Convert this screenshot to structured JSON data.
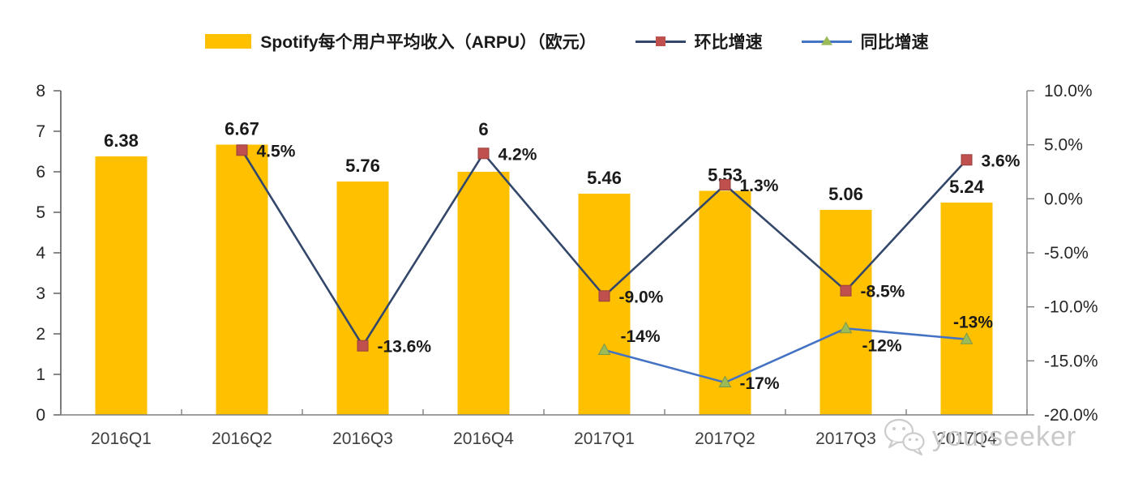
{
  "legend": {
    "items": [
      {
        "label": "Spotify每个用户平均收入（ARPU）（欧元）",
        "swatch": "bar",
        "color": "#FFC000"
      },
      {
        "label": "环比增速",
        "swatch": "line-square-marker",
        "line_color": "#33476B",
        "marker_color": "#C0504D"
      },
      {
        "label": "同比增速",
        "swatch": "line-triangle-marker",
        "line_color": "#4472C4",
        "marker_color": "#9BBB59"
      }
    ]
  },
  "watermark": {
    "text": "yourseeker",
    "icon": "wechat-icon",
    "color": "#c9c9c9"
  },
  "colors": {
    "bar": "#FFC000",
    "qoq_line": "#33476B",
    "qoq_marker": "#C0504D",
    "yoy_line": "#4472C4",
    "yoy_marker": "#9BBB59",
    "axis": "#7f7f7f",
    "left_axis": "#595959",
    "label_text": "#1a1a1a"
  },
  "chart_data": {
    "type": "bar+line",
    "categories": [
      "2016Q1",
      "2016Q2",
      "2016Q3",
      "2016Q4",
      "2017Q1",
      "2017Q2",
      "2017Q3",
      "2017Q4"
    ],
    "series": [
      {
        "name": "Spotify每个用户平均收入（ARPU）（欧元）",
        "type": "bar",
        "axis": "left",
        "color": "#FFC000",
        "values": [
          6.38,
          6.67,
          5.76,
          6,
          5.46,
          5.53,
          5.06,
          5.24
        ],
        "labels": [
          "6.38",
          "6.67",
          "5.76",
          "6",
          "5.46",
          "5.53",
          "5.06",
          "5.24"
        ]
      },
      {
        "name": "环比增速",
        "type": "line",
        "axis": "right",
        "color": "#33476B",
        "marker": "square",
        "marker_color": "#C0504D",
        "values": [
          null,
          4.5,
          -13.6,
          4.2,
          -9.0,
          1.3,
          -8.5,
          3.6
        ],
        "labels": [
          null,
          "4.5%",
          "-13.6%",
          "4.2%",
          "-9.0%",
          "1.3%",
          "-8.5%",
          "3.6%"
        ],
        "label_pos": [
          null,
          "right",
          "right",
          "right",
          "right",
          "right",
          "right",
          "right"
        ]
      },
      {
        "name": "同比增速",
        "type": "line",
        "axis": "right",
        "color": "#4472C4",
        "marker": "triangle",
        "marker_color": "#9BBB59",
        "values": [
          null,
          null,
          null,
          null,
          -14,
          -17,
          -12,
          -13
        ],
        "labels": [
          null,
          null,
          null,
          null,
          "-14%",
          "-17%",
          "-12%",
          "-13%"
        ],
        "label_pos": [
          null,
          null,
          null,
          null,
          "above-right",
          "right",
          "below-right",
          "above"
        ]
      }
    ],
    "left_axis": {
      "min": 0,
      "max": 8,
      "step": 1,
      "tick_labels": [
        "0",
        "1",
        "2",
        "3",
        "4",
        "5",
        "6",
        "7",
        "8"
      ]
    },
    "right_axis": {
      "min": -20,
      "max": 10,
      "step": 5,
      "tick_labels": [
        "10.0%",
        "5.0%",
        "0.0%",
        "-5.0%",
        "-10.0%",
        "-15.0%",
        "-20.0%"
      ]
    },
    "grid": false,
    "legend_position": "top"
  }
}
